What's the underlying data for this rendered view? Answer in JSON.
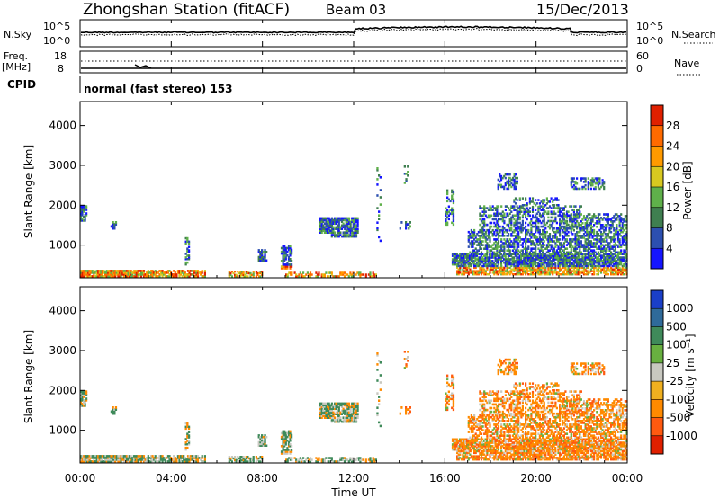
{
  "header": {
    "station": "Zhongshan Station (fitACF)",
    "beam": "Beam 03",
    "date": "15/Dec/2013"
  },
  "noise_panel": {
    "left_label": "N.Sky",
    "right_label": "N.Search",
    "left_ticks": [
      "10^5",
      "10^0"
    ],
    "right_ticks": [
      "10^5",
      "10^0"
    ]
  },
  "freq_panel": {
    "left_label_line1": "Freq.",
    "left_label_line2": "[MHz]",
    "right_label": "Nave",
    "left_ticks": [
      "18",
      "8"
    ],
    "right_ticks": [
      "60",
      "0"
    ]
  },
  "cpid": {
    "label": "CPID",
    "value": "normal (fast stereo) 153"
  },
  "chart_data": [
    {
      "type": "heatmap",
      "name": "power",
      "ylabel": "Slant Range [km]",
      "ylim": [
        180,
        4600
      ],
      "yticks": [
        "1000",
        "2000",
        "3000",
        "4000"
      ],
      "colorbar_label": "Power [dB]",
      "colorbar_ticks": [
        "28",
        "24",
        "20",
        "16",
        "12",
        "8",
        "4"
      ],
      "colorbar_colors": [
        "#1515ff",
        "#2c4fb0",
        "#3f7f50",
        "#5fb04a",
        "#d8c820",
        "#ff9a00",
        "#ff6a00",
        "#e02000"
      ]
    },
    {
      "type": "heatmap",
      "name": "velocity",
      "ylabel": "Slant Range [km]",
      "ylim": [
        180,
        4600
      ],
      "yticks": [
        "1000",
        "2000",
        "3000",
        "4000"
      ],
      "colorbar_label": "Velocity [m s⁻¹]",
      "colorbar_ticks": [
        "1000",
        "500",
        "100",
        "25",
        "-25",
        "-100",
        "-500",
        "-1000"
      ],
      "colorbar_colors": [
        "#1a3fc8",
        "#2f6a9a",
        "#3f8a5a",
        "#68b040",
        "#c8c8c0",
        "#f0b020",
        "#ff8a00",
        "#ff5a10",
        "#e02000"
      ]
    }
  ],
  "x_axis": {
    "ticks": [
      "00:00",
      "04:00",
      "08:00",
      "12:00",
      "16:00",
      "20:00",
      "00:00"
    ],
    "label": "Time UT"
  }
}
